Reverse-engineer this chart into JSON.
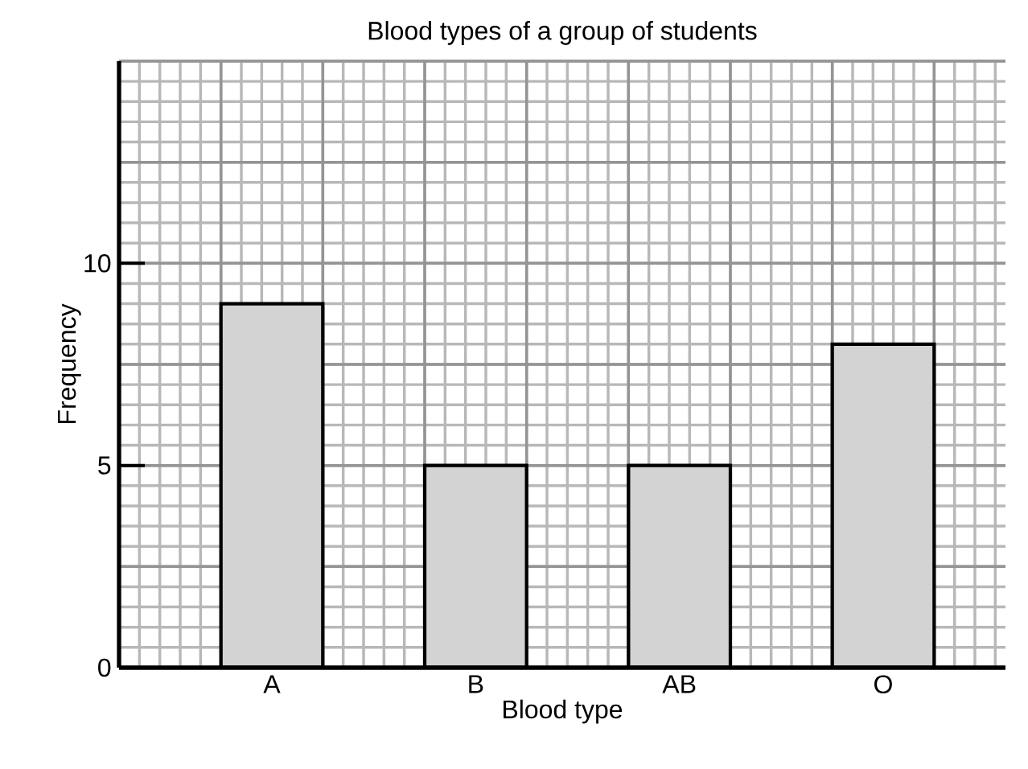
{
  "chart_data": {
    "type": "bar",
    "title": "Blood types of a group of students",
    "xlabel": "Blood type",
    "ylabel": "Frequency",
    "categories": [
      "A",
      "B",
      "AB",
      "O"
    ],
    "values": [
      9,
      5,
      5,
      8
    ],
    "color": "#d3d3d3",
    "ylim": [
      0,
      15
    ],
    "yticks": [
      0,
      5,
      10
    ],
    "grid": true
  }
}
